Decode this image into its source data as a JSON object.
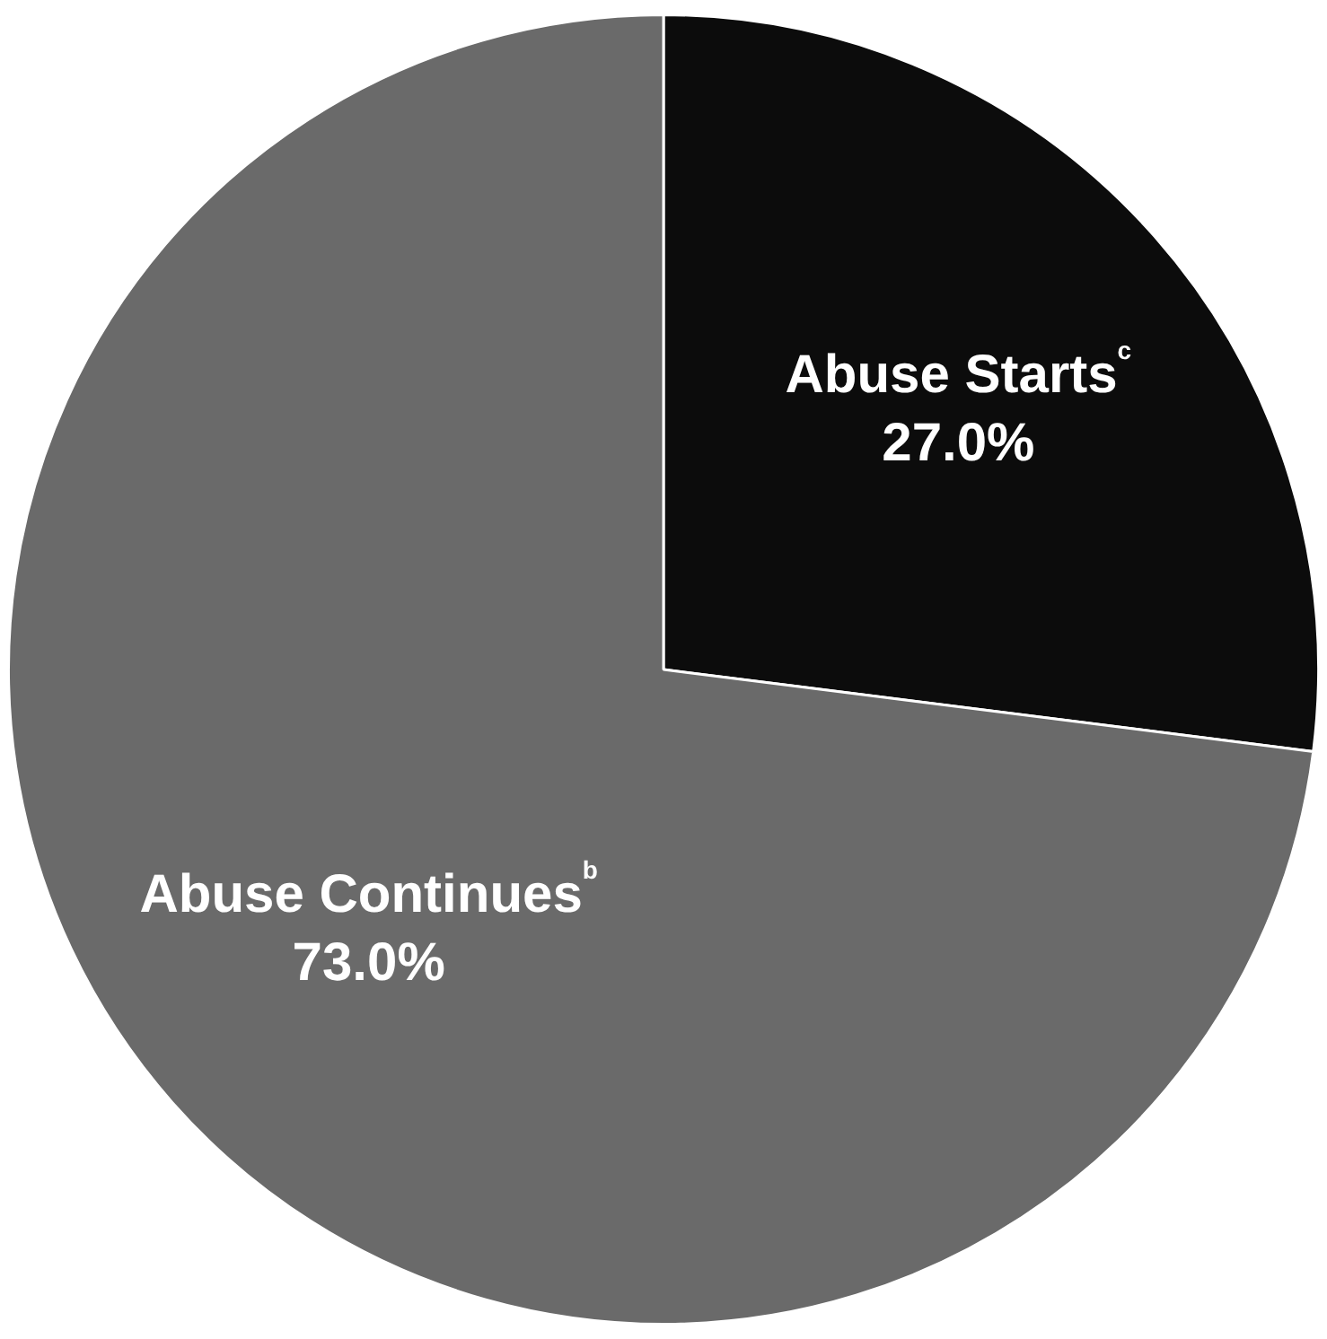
{
  "chart_data": {
    "type": "pie",
    "categories": [
      "Abuse Starts$^{c}$",
      "Abuse Continues$^{b}$"
    ],
    "values": [
      27.0,
      73.0
    ],
    "colors": [
      "#0c0c0c",
      "#6a6a6a"
    ],
    "value_labels": [
      "27.0%",
      "73.0%"
    ],
    "legend": false
  }
}
